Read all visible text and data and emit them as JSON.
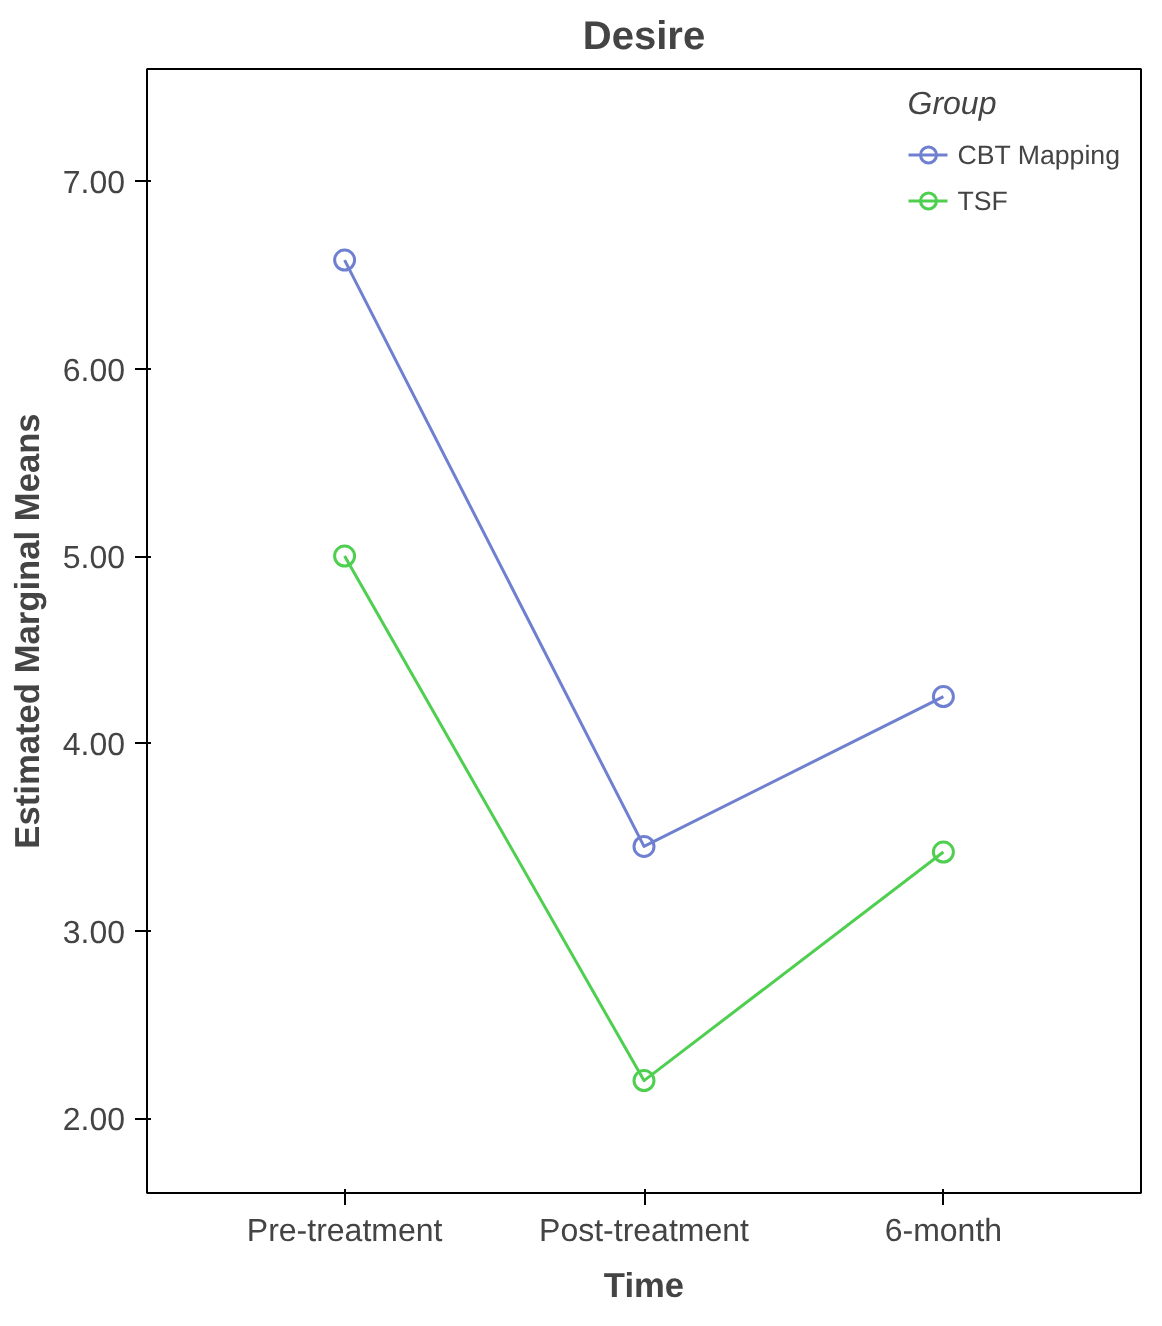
{
  "chart_data": {
    "type": "line",
    "title": "Desire",
    "xlabel": "Time",
    "ylabel": "Estimated Marginal Means",
    "legend_title": "Group",
    "categories": [
      "Pre-treatment",
      "Post-treatment",
      "6-month"
    ],
    "series": [
      {
        "name": "CBT Mapping",
        "color": "#6f80d0",
        "values": [
          6.58,
          3.45,
          4.25
        ]
      },
      {
        "name": "TSF",
        "color": "#4fcf50",
        "values": [
          5.0,
          2.2,
          3.42
        ]
      }
    ],
    "ylim": [
      1.6,
      7.6
    ],
    "yticks": [
      {
        "value": 2,
        "label": "2.00"
      },
      {
        "value": 3,
        "label": "3.00"
      },
      {
        "value": 4,
        "label": "4.00"
      },
      {
        "value": 5,
        "label": "5.00"
      },
      {
        "value": 6,
        "label": "6.00"
      },
      {
        "value": 7,
        "label": "7.00"
      }
    ],
    "marker": "circle",
    "line_style": "solid",
    "legend": "top right",
    "grid": false
  }
}
